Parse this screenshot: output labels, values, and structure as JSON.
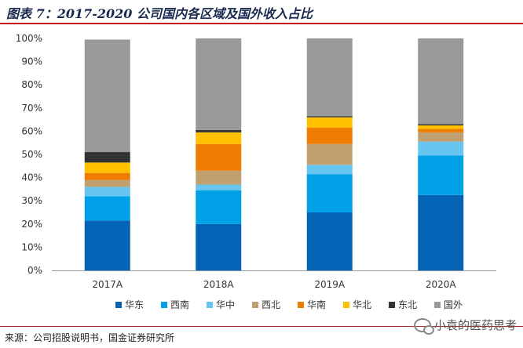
{
  "header": {
    "title": "图表 7：2017-2020 公司国内各区域及国外收入占比"
  },
  "chart_data": {
    "type": "bar",
    "stacked": true,
    "categories": [
      "2017A",
      "2018A",
      "2019A",
      "2020A"
    ],
    "ylim": [
      0,
      100
    ],
    "yticks": [
      "0%",
      "10%",
      "20%",
      "30%",
      "40%",
      "50%",
      "60%",
      "70%",
      "80%",
      "90%",
      "100%"
    ],
    "series": [
      {
        "name": "华东",
        "color": "#0563b6",
        "values": [
          21.5,
          20,
          25,
          32.5
        ]
      },
      {
        "name": "西南",
        "color": "#00a0e6",
        "values": [
          10.5,
          14.5,
          16.5,
          17
        ]
      },
      {
        "name": "华中",
        "color": "#66c6f0",
        "values": [
          4,
          2.5,
          4,
          6
        ]
      },
      {
        "name": "西北",
        "color": "#c0a070",
        "values": [
          3,
          6,
          9,
          4
        ]
      },
      {
        "name": "华南",
        "color": "#ee7c00",
        "values": [
          3,
          11.5,
          7,
          1.5
        ]
      },
      {
        "name": "华北",
        "color": "#ffc000",
        "values": [
          4.5,
          5,
          4.5,
          1.5
        ]
      },
      {
        "name": "东北",
        "color": "#333333",
        "values": [
          4.5,
          1,
          0.5,
          0.5
        ]
      },
      {
        "name": "国外",
        "color": "#999999",
        "values": [
          48.5,
          39.5,
          33.5,
          37
        ]
      }
    ],
    "legend_position": "bottom"
  },
  "footer": {
    "source": "来源：公司招股说明书，国金证券研究所",
    "watermark": "小袁的医药思考"
  }
}
